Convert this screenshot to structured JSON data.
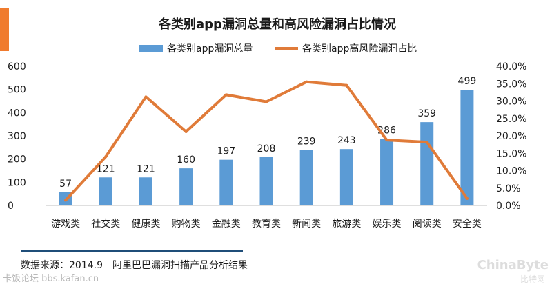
{
  "source_note": "数据来源：2014.9　阿里巴巴漏洞扫描产品分析结果",
  "watermark_left": "卡饭论坛 bbs.kafan.cn",
  "watermark_right_top": "ChinaByte",
  "watermark_right_bottom": "比特网",
  "colors": {
    "accent_bar": "#F07B2E",
    "bar": "#5B9BD5",
    "line": "#E07B39",
    "footer_rule": "#1F4E79"
  },
  "chart_data": {
    "type": "bar",
    "title": "各类别app漏洞总量和高风险漏洞占比情况",
    "categories": [
      "游戏类",
      "社交类",
      "健康类",
      "购物类",
      "金融类",
      "教育类",
      "新闻类",
      "旅游类",
      "娱乐类",
      "阅读类",
      "安全类"
    ],
    "series": [
      {
        "name": "各类别app漏洞总量",
        "type": "bar",
        "axis": "left",
        "values": [
          57,
          121,
          121,
          160,
          197,
          208,
          239,
          243,
          286,
          359,
          499
        ]
      },
      {
        "name": "各类别app高风险漏洞占比",
        "type": "line",
        "axis": "right",
        "values": [
          1.5,
          14.0,
          31.2,
          21.2,
          31.8,
          29.8,
          35.5,
          34.5,
          18.8,
          18.2,
          2.0
        ]
      }
    ],
    "y_left": {
      "min": 0,
      "max": 600,
      "ticks": [
        0,
        100,
        200,
        300,
        400,
        500,
        600
      ]
    },
    "y_right": {
      "min": 0,
      "max": 40,
      "ticks": [
        "0.0%",
        "5.0%",
        "10.0%",
        "15.0%",
        "20.0%",
        "25.0%",
        "30.0%",
        "35.0%",
        "40.0%"
      ]
    },
    "bar_labels": [
      "57",
      "121",
      "121",
      "160",
      "197",
      "208",
      "239",
      "243",
      "286",
      "359",
      "499"
    ],
    "legend_position": "top",
    "grid": false
  }
}
